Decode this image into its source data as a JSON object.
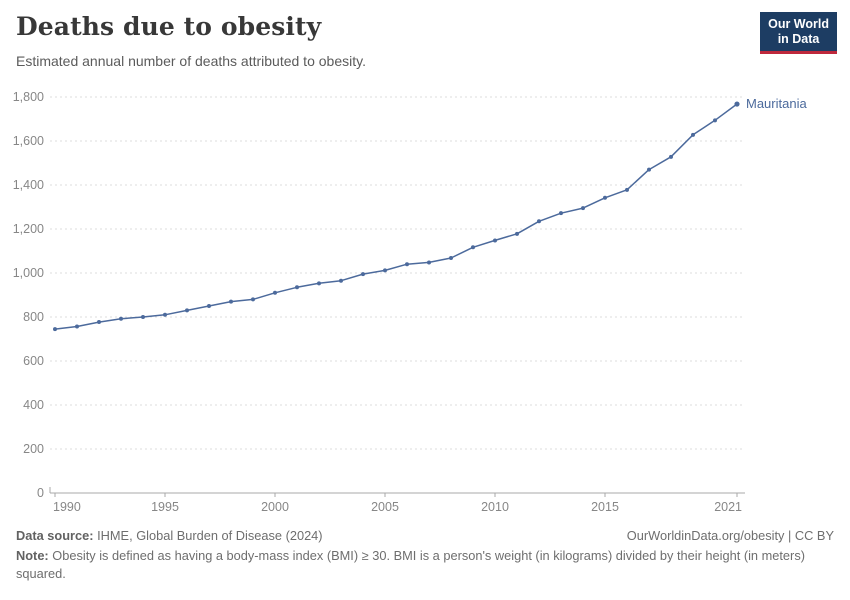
{
  "header": {
    "title": "Deaths due to obesity",
    "subtitle": "Estimated annual number of deaths attributed to obesity.",
    "logo": {
      "line1": "Our World",
      "line2": "in Data"
    }
  },
  "chart_data": {
    "type": "line",
    "title": "Deaths due to obesity",
    "subtitle": "Estimated annual number of deaths attributed to obesity.",
    "entity_label": "Mauritania",
    "x": [
      1990,
      1991,
      1992,
      1993,
      1994,
      1995,
      1996,
      1997,
      1998,
      1999,
      2000,
      2001,
      2002,
      2003,
      2004,
      2005,
      2006,
      2007,
      2008,
      2009,
      2010,
      2011,
      2012,
      2013,
      2014,
      2015,
      2016,
      2017,
      2018,
      2019,
      2020,
      2021
    ],
    "series": [
      {
        "name": "Mauritania",
        "values": [
          745,
          757,
          777,
          792,
          800,
          810,
          830,
          850,
          870,
          880,
          910,
          935,
          953,
          965,
          995,
          1012,
          1040,
          1048,
          1068,
          1117,
          1148,
          1178,
          1235,
          1272,
          1295,
          1342,
          1378,
          1470,
          1528,
          1628,
          1694,
          1768
        ]
      }
    ],
    "xlabel": "",
    "ylabel": "",
    "ylim": [
      0,
      1800
    ],
    "ytick_step": 200,
    "xticks": [
      1990,
      1995,
      2000,
      2005,
      2010,
      2015,
      2021
    ],
    "grid": true,
    "legend_position": "end-of-line",
    "line_color": "#4c6a9c"
  },
  "colors": {
    "line": "#4c6a9c",
    "entity_label": "#4c6a9c",
    "logo_bg": "#1d3d63",
    "logo_red": "#be283c",
    "gridline": "#dddddd",
    "axis": "#a8a8a8"
  },
  "footer": {
    "source_label": "Data source:",
    "source_text": " IHME, Global Burden of Disease (2024)",
    "link_text": "OurWorldinData.org/obesity | CC BY",
    "note_label": "Note:",
    "note_text": " Obesity is defined as having a body-mass index (BMI) ≥ 30. BMI is a person's weight (in kilograms) divided by their height (in meters) squared."
  }
}
